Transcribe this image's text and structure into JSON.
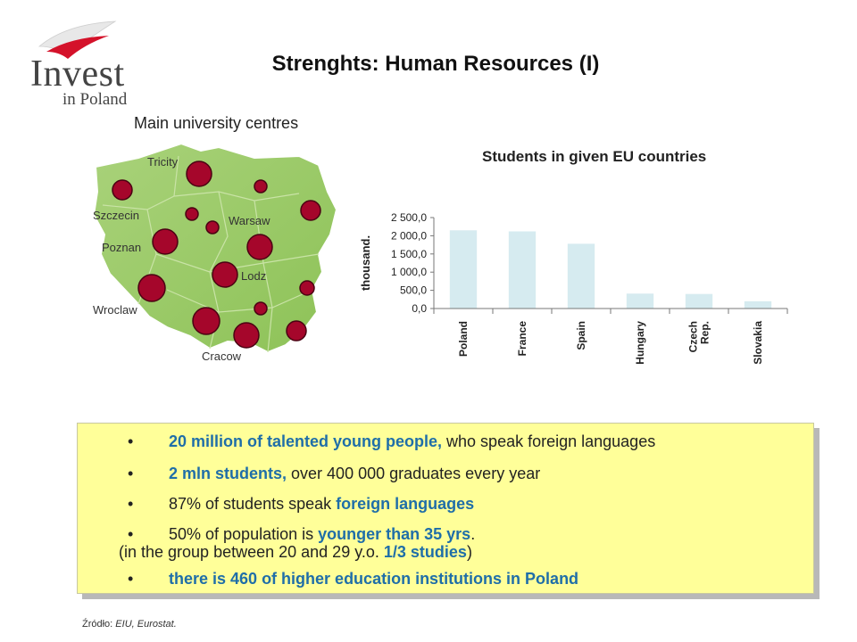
{
  "logo": {
    "word1": "Invest",
    "word2": "in Poland"
  },
  "title": "Strenghts: Human Resources (I)",
  "map": {
    "title": "Main university centres",
    "cities": [
      "Tricity",
      "Szczecin",
      "Warsaw",
      "Poznan",
      "Lodz",
      "Wroclaw",
      "Cracow"
    ]
  },
  "chart_data": {
    "type": "bar",
    "title": "Students in given EU countries",
    "ylabel": "thousand.",
    "xlabel": "",
    "categories": [
      "Poland",
      "France",
      "Spain",
      "Hungary",
      "Czech Rep.",
      "Slovakia"
    ],
    "category_lines": [
      [
        "Poland"
      ],
      [
        "France"
      ],
      [
        "Spain"
      ],
      [
        "Hungary"
      ],
      [
        "Czech",
        "Rep."
      ],
      [
        "Slovakia"
      ]
    ],
    "values": [
      2150,
      2120,
      1780,
      410,
      400,
      200
    ],
    "ylim": [
      0,
      2500
    ],
    "yticks": [
      "0,0",
      "500,0",
      "1 000,0",
      "1 500,0",
      "2 000,0",
      "2 500,0"
    ],
    "grid": false,
    "bar_color": "#d6ebf0"
  },
  "bullets": [
    {
      "blue": "20 million of talented young people,",
      "rest": " who speak foreign languages"
    },
    {
      "blue": "2 mln students,",
      "rest": " over 400 000 graduates every year"
    },
    {
      "pre": "87% of students speak ",
      "blue": "foreign languages"
    },
    {
      "pre": "50% of population is ",
      "blue": "younger than 35 yrs",
      "post": "."
    },
    {
      "blue": "there is 460 of higher education institutions in Poland"
    }
  ],
  "subline": {
    "pre": "(in the group between 20 and 29 y.o. ",
    "blue": "1/3 studies",
    "post": ")"
  },
  "source": {
    "label": "Źródło: ",
    "text": "EIU, Eurostat."
  }
}
